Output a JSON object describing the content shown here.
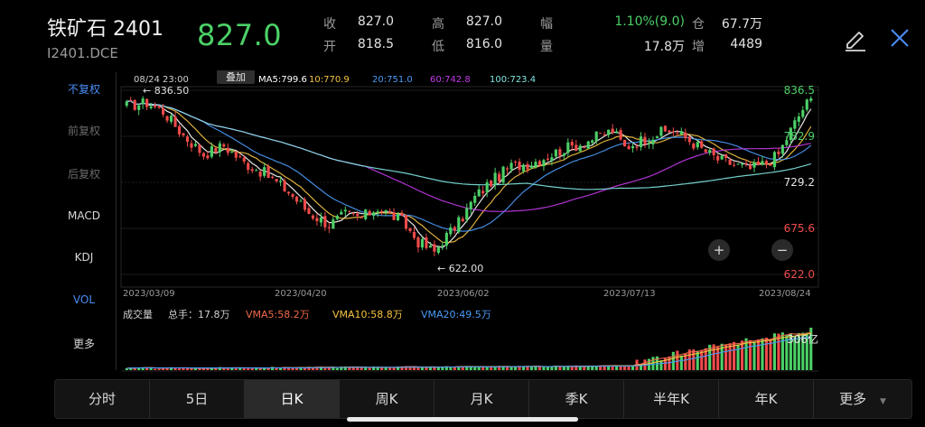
{
  "header": {
    "title": "铁矿石 2401",
    "code": "I2401.DCE",
    "price": "827.0",
    "quotes": [
      {
        "label": "收",
        "value": "827.0"
      },
      {
        "label": "开",
        "value": "818.5"
      },
      {
        "label": "高",
        "value": "827.0"
      },
      {
        "label": "低",
        "value": "816.0"
      },
      {
        "label": "幅",
        "value": "1.10%(9.0)"
      },
      {
        "label": "量",
        "value": "17.8万"
      },
      {
        "label": "仓",
        "value": "67.7万"
      },
      {
        "label": "增",
        "value": "4489"
      }
    ]
  },
  "sidebar": {
    "items": [
      {
        "label": "不复权",
        "state": "active"
      },
      {
        "label": "前复权",
        "state": "dim"
      },
      {
        "label": "后复权",
        "state": "dim"
      },
      {
        "label": "MACD",
        "state": "normal"
      },
      {
        "label": "KDJ",
        "state": "normal"
      },
      {
        "label": "VOL",
        "state": "active"
      },
      {
        "label": "更多",
        "state": "normal"
      }
    ]
  },
  "chart_data": {
    "type": "candlestick",
    "timestamp": "08/24 23:00",
    "overlay_button": "叠加",
    "ma_legend": [
      {
        "label": "MA5:799.6",
        "color": "#ffffff"
      },
      {
        "label": "10:770.9",
        "color": "#f5c342"
      },
      {
        "label": "20:751.0",
        "color": "#4a9af5"
      },
      {
        "label": "60:742.8",
        "color": "#c23ae8"
      },
      {
        "label": "100:723.4",
        "color": "#7fe6e0"
      }
    ],
    "y_ticks": [
      {
        "value": 836.5,
        "label": "836.5",
        "color": "#4cd067"
      },
      {
        "value": 782.9,
        "label": "782.9",
        "color": "#4cd067"
      },
      {
        "value": 729.2,
        "label": "729.2",
        "color": "#e6e6e6"
      },
      {
        "value": 675.6,
        "label": "675.6",
        "color": "#ef4a4a"
      },
      {
        "value": 622.0,
        "label": "622.0",
        "color": "#ef4a4a"
      }
    ],
    "ylim": [
      622,
      836.5
    ],
    "x_ticks": [
      "2023/03/09",
      "2023/04/20",
      "2023/06/02",
      "2023/07/13",
      "2023/08/24"
    ],
    "annotations": {
      "high": "836.50",
      "low": "622.00"
    },
    "close_anchors": [
      [
        0,
        818
      ],
      [
        5,
        822
      ],
      [
        9,
        812
      ],
      [
        14,
        784
      ],
      [
        19,
        762
      ],
      [
        24,
        772
      ],
      [
        29,
        752
      ],
      [
        34,
        740
      ],
      [
        40,
        718
      ],
      [
        45,
        694
      ],
      [
        50,
        680
      ],
      [
        54,
        692
      ],
      [
        58,
        688
      ],
      [
        62,
        700
      ],
      [
        68,
        684
      ],
      [
        72,
        660
      ],
      [
        76,
        648
      ],
      [
        78,
        662
      ],
      [
        82,
        682
      ],
      [
        86,
        712
      ],
      [
        90,
        730
      ],
      [
        95,
        748
      ],
      [
        100,
        752
      ],
      [
        104,
        760
      ],
      [
        108,
        768
      ],
      [
        112,
        774
      ],
      [
        116,
        782
      ],
      [
        120,
        790
      ],
      [
        123,
        770
      ],
      [
        127,
        778
      ],
      [
        131,
        786
      ],
      [
        135,
        790
      ],
      [
        139,
        778
      ],
      [
        142,
        768
      ],
      [
        146,
        756
      ],
      [
        150,
        750
      ],
      [
        154,
        745
      ],
      [
        158,
        752
      ],
      [
        161,
        762
      ],
      [
        164,
        790
      ],
      [
        167,
        815
      ],
      [
        169,
        827
      ]
    ],
    "count": 170,
    "volume_legend": {
      "title": "成交量",
      "total": "总手：17.8万",
      "items": [
        {
          "label": "VMA5:58.2万",
          "color": "#ef6a4a"
        },
        {
          "label": "VMA10:58.8万",
          "color": "#f5c342"
        },
        {
          "label": "VMA20:49.5万",
          "color": "#4a9af5"
        }
      ]
    },
    "volume_tick": "306亿",
    "zoom_in": "+",
    "zoom_out": "−"
  },
  "tabs": [
    {
      "label": "分时",
      "active": false
    },
    {
      "label": "5日",
      "active": false
    },
    {
      "label": "日K",
      "active": true
    },
    {
      "label": "周K",
      "active": false
    },
    {
      "label": "月K",
      "active": false
    },
    {
      "label": "季K",
      "active": false
    },
    {
      "label": "半年K",
      "active": false
    },
    {
      "label": "年K",
      "active": false
    },
    {
      "label": "更多",
      "active": false
    }
  ],
  "colors": {
    "up": "#4cd067",
    "down": "#ef4a4a",
    "accent": "#4a8df6"
  }
}
